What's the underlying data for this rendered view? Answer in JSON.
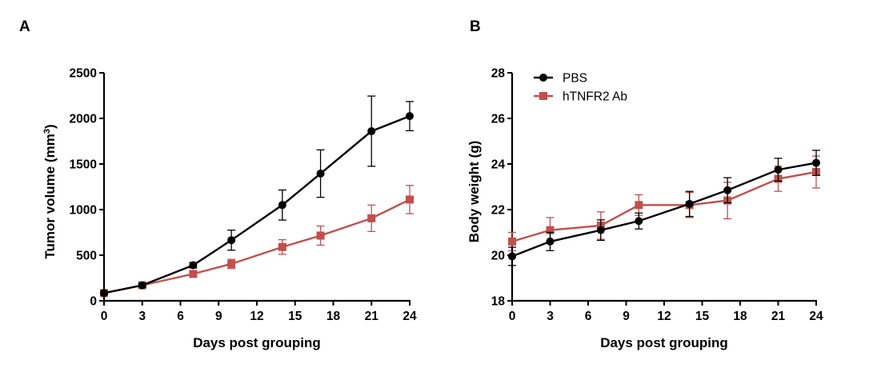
{
  "colors": {
    "PBS": "#000000",
    "hTNFR2 Ab": "#c0504d"
  },
  "chart_data": [
    {
      "panel": "A",
      "type": "line",
      "xlabel": "Days post grouping",
      "ylabel": "Tumor volume (mm",
      "ylabel_sup": "3",
      "ylabel_end": ")",
      "xlim": [
        0,
        24
      ],
      "ylim": [
        0,
        2500
      ],
      "xticks": [
        0,
        3,
        6,
        9,
        12,
        15,
        18,
        21,
        24
      ],
      "yticks": [
        0,
        500,
        1000,
        1500,
        2000,
        2500
      ],
      "grid": false,
      "legend": null,
      "series": [
        {
          "name": "PBS",
          "marker": "circle",
          "x": [
            0,
            3,
            7,
            10,
            14,
            17,
            21,
            24
          ],
          "y": [
            85,
            170,
            390,
            665,
            1050,
            1395,
            1860,
            2025
          ],
          "err": [
            15,
            20,
            30,
            110,
            165,
            260,
            385,
            160
          ]
        },
        {
          "name": "hTNFR2 Ab",
          "marker": "square",
          "x": [
            0,
            3,
            7,
            10,
            14,
            17,
            21,
            24
          ],
          "y": [
            85,
            170,
            295,
            405,
            590,
            715,
            905,
            1110
          ],
          "err": [
            15,
            20,
            30,
            50,
            80,
            105,
            145,
            155
          ]
        }
      ]
    },
    {
      "panel": "B",
      "type": "line",
      "xlabel": "Days post grouping",
      "ylabel": "Body weight (g)",
      "xlim": [
        0,
        24
      ],
      "ylim": [
        18,
        28
      ],
      "xticks": [
        0,
        3,
        6,
        9,
        12,
        15,
        18,
        21,
        24
      ],
      "yticks": [
        18,
        20,
        22,
        24,
        26,
        28
      ],
      "grid": false,
      "legend": "top-left",
      "series": [
        {
          "name": "PBS",
          "marker": "circle",
          "x": [
            0,
            3,
            7,
            10,
            14,
            17,
            21,
            24
          ],
          "y": [
            19.95,
            20.6,
            21.1,
            21.5,
            22.25,
            22.85,
            23.75,
            24.05
          ],
          "err": [
            0.4,
            0.4,
            0.45,
            0.35,
            0.55,
            0.55,
            0.5,
            0.55
          ]
        },
        {
          "name": "hTNFR2 Ab",
          "marker": "square",
          "x": [
            0,
            3,
            7,
            10,
            14,
            17,
            21,
            24
          ],
          "y": [
            20.6,
            21.1,
            21.3,
            22.2,
            22.2,
            22.4,
            23.35,
            23.65
          ],
          "err": [
            0.4,
            0.55,
            0.6,
            0.45,
            0.55,
            0.8,
            0.55,
            0.7
          ]
        }
      ]
    }
  ]
}
